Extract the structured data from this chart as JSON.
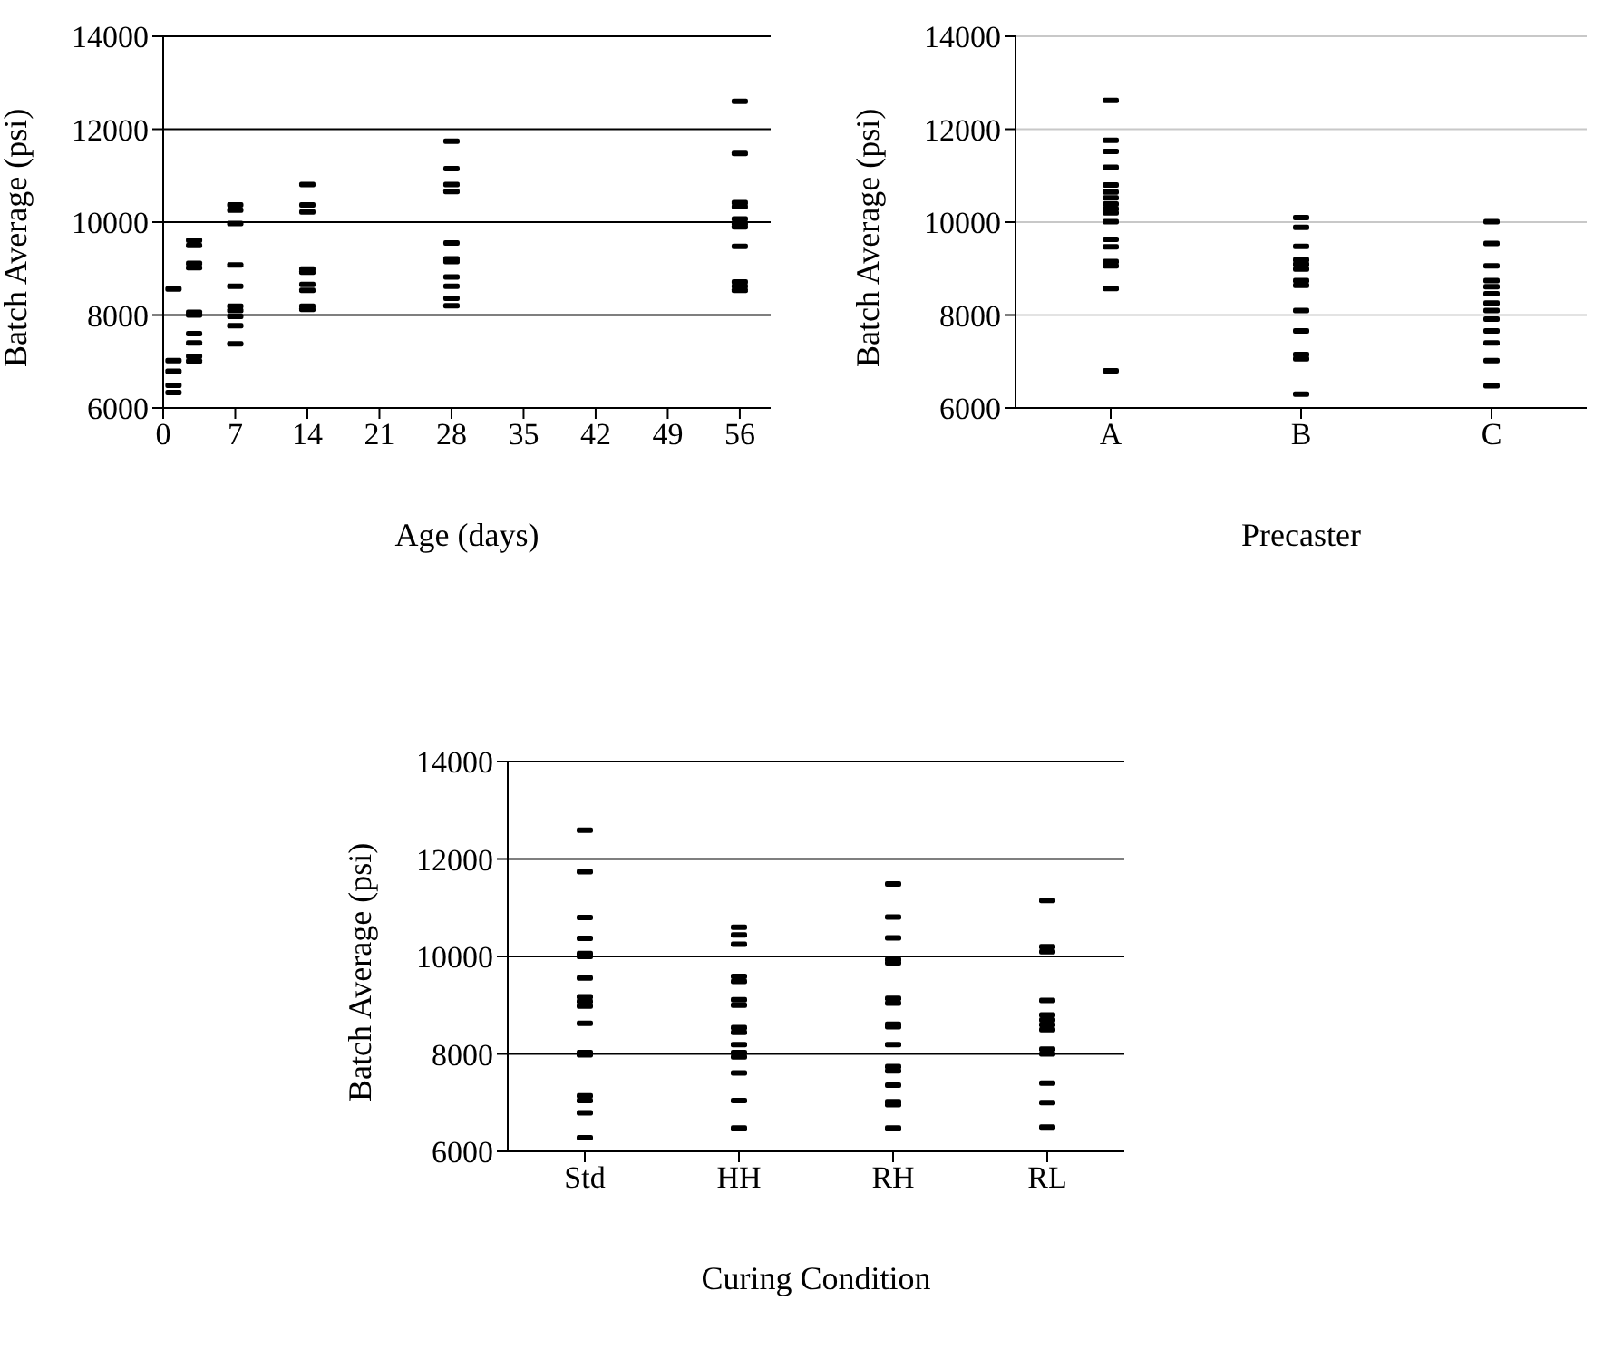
{
  "chart_data": [
    {
      "type": "scatter",
      "xlabel": "Age (days)",
      "ylabel": "Batch Average (psi)",
      "xlim": [
        0,
        59
      ],
      "xticks": [
        0,
        7,
        14,
        21,
        28,
        35,
        42,
        49,
        56
      ],
      "ylim": [
        6000,
        14000
      ],
      "yticks": [
        6000,
        8000,
        10000,
        12000,
        14000
      ],
      "grid": "y",
      "marker": "square",
      "series": [
        {
          "color": "#000000",
          "x": [
            1,
            1,
            1,
            1,
            1,
            3,
            3,
            3,
            3,
            3,
            3,
            3,
            3,
            3,
            3,
            7,
            7,
            7,
            7,
            7,
            7,
            7,
            7,
            7,
            7,
            14,
            14,
            14,
            14,
            14,
            14,
            14,
            14,
            14,
            28,
            28,
            28,
            28,
            28,
            28,
            28,
            28,
            28,
            28,
            28,
            56,
            56,
            56,
            56,
            56,
            56,
            56,
            56,
            56,
            56,
            56
          ],
          "values": [
            8560,
            7020,
            6790,
            6490,
            6330,
            9610,
            9500,
            9110,
            9020,
            8060,
            8000,
            7600,
            7400,
            7110,
            7010,
            10370,
            10260,
            9970,
            9080,
            8620,
            8190,
            8100,
            7970,
            7770,
            7380,
            10810,
            10370,
            10220,
            8990,
            8920,
            8660,
            8530,
            8190,
            8120,
            11740,
            11150,
            10810,
            10660,
            9550,
            9210,
            9150,
            8820,
            8620,
            8360,
            8200,
            12600,
            11480,
            10420,
            10330,
            10070,
            9970,
            9900,
            9480,
            8710,
            8620,
            8530
          ]
        }
      ]
    },
    {
      "type": "scatter",
      "xlabel": "Precaster",
      "ylabel": "Batch Average (psi)",
      "categories": [
        "A",
        "B",
        "C"
      ],
      "ylim": [
        6000,
        14000
      ],
      "yticks": [
        6000,
        8000,
        10000,
        12000,
        14000
      ],
      "grid": "y",
      "marker": "square",
      "series": [
        {
          "color": "#000000",
          "x": [
            "A",
            "A",
            "A",
            "A",
            "A",
            "A",
            "A",
            "A",
            "A",
            "A",
            "A",
            "A",
            "A",
            "A",
            "A",
            "A",
            "A",
            "B",
            "B",
            "B",
            "B",
            "B",
            "B",
            "B",
            "B",
            "B",
            "B",
            "B",
            "B",
            "B",
            "B",
            "C",
            "C",
            "C",
            "C",
            "C",
            "C",
            "C",
            "C",
            "C",
            "C",
            "C",
            "C",
            "C",
            "C"
          ],
          "values": [
            12620,
            11760,
            11520,
            11180,
            10800,
            10650,
            10520,
            10390,
            10290,
            10200,
            10010,
            9630,
            9470,
            9150,
            9060,
            8570,
            6800,
            10100,
            9890,
            9480,
            9190,
            9100,
            8990,
            8740,
            8640,
            8100,
            null,
            7660,
            7150,
            7060,
            6300,
            10010,
            9540,
            9060,
            8740,
            8610,
            8460,
            8260,
            8100,
            7910,
            7660,
            7400,
            7020,
            null,
            6480
          ]
        }
      ]
    },
    {
      "type": "scatter",
      "xlabel": "Curing Condition",
      "ylabel": "Batch Average (psi)",
      "categories": [
        "Std",
        "HH",
        "RH",
        "RL"
      ],
      "ylim": [
        6000,
        14000
      ],
      "yticks": [
        6000,
        8000,
        10000,
        12000,
        14000
      ],
      "grid": "y",
      "marker": "square",
      "series": [
        {
          "color": "#000000",
          "x": [
            "Std",
            "Std",
            "Std",
            "Std",
            "Std",
            "Std",
            "Std",
            "Std",
            "Std",
            "Std",
            "Std",
            "Std",
            "Std",
            "Std",
            "Std",
            "Std",
            "Std",
            "HH",
            "HH",
            "HH",
            "HH",
            "HH",
            "HH",
            "HH",
            "HH",
            "HH",
            "HH",
            "HH",
            "HH",
            "HH",
            "HH",
            "HH",
            "RH",
            "RH",
            "RH",
            "RH",
            "RH",
            "RH",
            "RH",
            "RH",
            "RH",
            "RH",
            "RH",
            "RH",
            "RH",
            "RH",
            "RH",
            "RH",
            "RL",
            "RL",
            "RL",
            "RL",
            "RL",
            "RL",
            "RL",
            "RL",
            "RL",
            "RL",
            "RL",
            "RL",
            "RL"
          ],
          "values": [
            12590,
            11740,
            10800,
            10370,
            10060,
            10000,
            9560,
            9170,
            9080,
            8980,
            8630,
            8030,
            7980,
            7140,
            7040,
            6790,
            6280,
            10600,
            10440,
            10250,
            9590,
            9490,
            9110,
            9000,
            8540,
            8440,
            8190,
            8030,
            7940,
            7610,
            7040,
            6480,
            11490,
            10810,
            10380,
            9940,
            9870,
            9140,
            9040,
            8610,
            8560,
            8190,
            7740,
            7650,
            7360,
            7020,
            6960,
            6480,
            11150,
            10200,
            10100,
            9100,
            8800,
            8700,
            8600,
            8500,
            8100,
            8000,
            7400,
            7000,
            6500
          ]
        }
      ]
    }
  ]
}
